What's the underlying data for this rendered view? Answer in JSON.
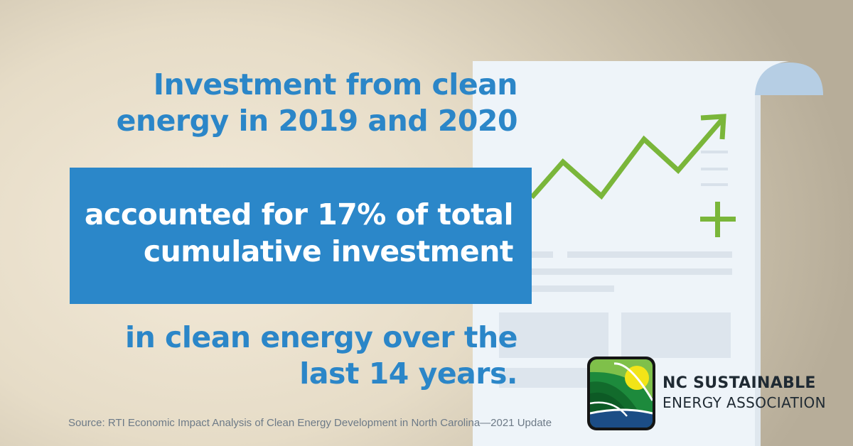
{
  "headline": {
    "line1": "Investment from clean",
    "line2": "energy in 2019 and 2020"
  },
  "highlight": {
    "line1": "accounted for 17% of total",
    "line2": "cumulative investment"
  },
  "closing": {
    "line1": "in clean energy over the",
    "line2": "last 14 years."
  },
  "source": "Source: RTI Economic Impact Analysis of Clean Energy Development in North Carolina—2021 Update",
  "organization": {
    "line1": "NC SUSTAINABLE",
    "line2": "ENERGY ASSOCIATION"
  },
  "icons": [
    "document-scroll-icon",
    "trend-arrow-icon",
    "plus-icon",
    "ncsea-logo-icon"
  ],
  "colors": {
    "accent_blue": "#2b87c9",
    "growth_green": "#7ab63a",
    "document": "#eef4f9",
    "scroll_curl": "#b5cde3",
    "logo_green": "#1d8a3c",
    "logo_yellow": "#f2e418",
    "logo_navy": "#1c4d86"
  }
}
